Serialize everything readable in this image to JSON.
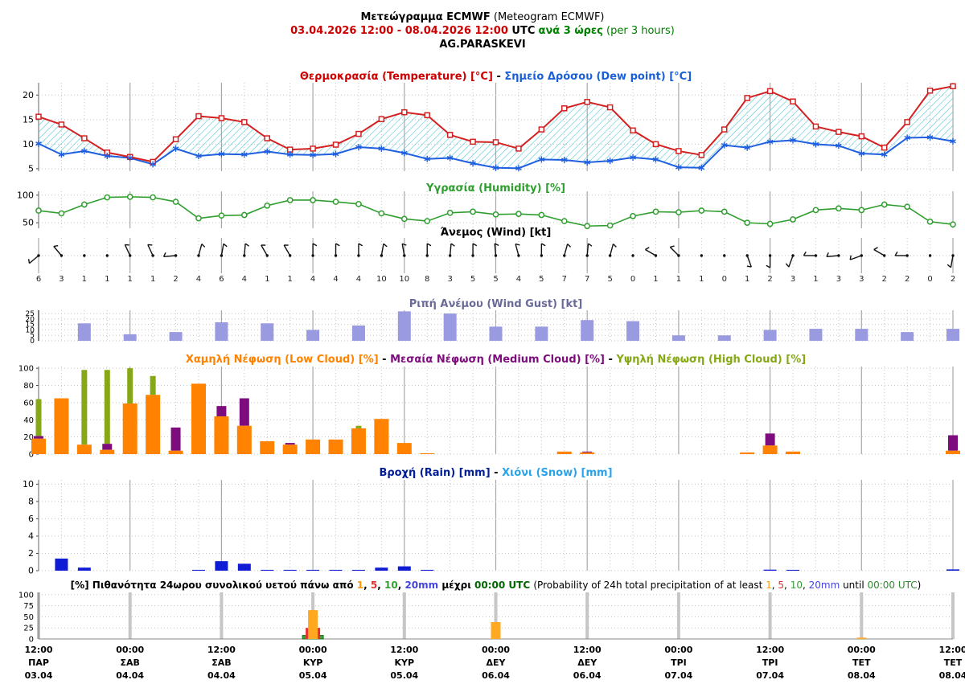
{
  "header": {
    "title_bold": "Μετεώγραμμα ECMWF",
    "title_paren": " (Meteogram ECMWF)",
    "date_range": "03.04.2026 12:00 - 08.04.2026 12:00",
    "utc_label": "UTC",
    "interval_greek": "ανά 3 ώρες",
    "interval_paren": "(per 3 hours)",
    "station": "AG.PARASKEVI"
  },
  "colors": {
    "date_red": "#cc0000",
    "interval_green": "#008000",
    "temperature": "#d42020",
    "dew_point": "#1f5fe0",
    "temp_fill_hatch": "#45c3d6",
    "humidity": "#2f9e2f",
    "wind_barb": "#111111",
    "gust_bar": "#9a9ae0",
    "low_cloud": "#ff8200",
    "medium_cloud": "#7d0c7d",
    "high_cloud": "#86a817",
    "rain_bar": "#0f1bd4",
    "prob_1mm": "#ffa820",
    "prob_5mm": "#e83030",
    "prob_10mm": "#3aa53a",
    "prob_20mm": "#3a3ae8",
    "grid_dotted": "#c4c4c4",
    "grid_solid": "#a8a8a8",
    "spine": "#888888"
  },
  "titles": {
    "temp": [
      {
        "t": "Θερμοκρασία (Temperature) [°C]",
        "c": "#cc0000"
      },
      {
        "t": " - ",
        "c": "#000000"
      },
      {
        "t": "Σημείο Δρόσου (Dew point) [°C]",
        "c": "#1a5fd6"
      }
    ],
    "humidity": [
      {
        "t": "Υγρασία (Humidity) [%]",
        "c": "#2f9e2f"
      }
    ],
    "wind": [
      {
        "t": "Άνεμος (Wind) [kt]",
        "c": "#000000"
      }
    ],
    "gust": [
      {
        "t": "Ριπή Ανέμου (Wind Gust) [kt]",
        "c": "#6a6a99"
      }
    ],
    "cloud": [
      {
        "t": "Χαμηλή Νέφωση (Low Cloud) [%]",
        "c": "#ff8200"
      },
      {
        "t": " - ",
        "c": "#000000"
      },
      {
        "t": "Μεσαία Νέφωση (Medium Cloud) [%]",
        "c": "#7d0c7d"
      },
      {
        "t": " - ",
        "c": "#000000"
      },
      {
        "t": "Υψηλή Νέφωση (High Cloud) [%]",
        "c": "#86a817"
      }
    ],
    "rain": [
      {
        "t": "Βροχή (Rain) [mm]",
        "c": "#001e96"
      },
      {
        "t": " - ",
        "c": "#000000"
      },
      {
        "t": "Χιόνι (Snow) [mm]",
        "c": "#2aa3e8"
      }
    ],
    "prob": [
      {
        "t": "[%] Πιθανότητα 24ωρου συνολικού υετού πάνω από ",
        "c": "#000000"
      },
      {
        "t": "1",
        "c": "#ff9900"
      },
      {
        "t": ", ",
        "c": "#000000"
      },
      {
        "t": "5",
        "c": "#e03030"
      },
      {
        "t": ", ",
        "c": "#000000"
      },
      {
        "t": "10",
        "c": "#33a033"
      },
      {
        "t": ", ",
        "c": "#000000"
      },
      {
        "t": "20mm",
        "c": "#4444dd"
      },
      {
        "t": " μέχρι ",
        "c": "#000000"
      },
      {
        "t": "00:00 UTC",
        "c": "#006600"
      },
      {
        "t": " ",
        "c": "#000000"
      },
      {
        "t": "(Probability of 24h total precipitation of at least ",
        "c": "#000000",
        "b": false
      },
      {
        "t": "1",
        "c": "#ff9900",
        "b": false
      },
      {
        "t": ", ",
        "c": "#000000",
        "b": false
      },
      {
        "t": "5",
        "c": "#e03030",
        "b": false
      },
      {
        "t": ", ",
        "c": "#000000",
        "b": false
      },
      {
        "t": "10",
        "c": "#33a033",
        "b": false
      },
      {
        "t": ", ",
        "c": "#000000",
        "b": false
      },
      {
        "t": "20mm",
        "c": "#4444dd",
        "b": false
      },
      {
        "t": " until ",
        "c": "#000000",
        "b": false
      },
      {
        "t": "00:00 UTC",
        "c": "#2e8b2e",
        "b": false
      },
      {
        "t": ")",
        "c": "#000000",
        "b": false
      }
    ]
  },
  "chart_data": [
    {
      "type": "line",
      "name": "temperature_dewpoint",
      "title": "Θερμοκρασία (Temperature) [°C] - Σημείο Δρόσου (Dew point) [°C]",
      "ylim": [
        4.5,
        22.5
      ],
      "yticks": [
        5,
        10,
        15,
        20
      ],
      "n_points": 41,
      "interval_hours": 3,
      "fill_between": "hatched",
      "series": [
        {
          "name": "temperature_C",
          "values": [
            15.6,
            14.0,
            11.2,
            8.3,
            7.4,
            6.4,
            11.0,
            15.7,
            15.3,
            14.5,
            11.2,
            8.9,
            9.1,
            9.9,
            12.1,
            15.1,
            16.5,
            15.9,
            11.9,
            10.5,
            10.4,
            9.1,
            13.0,
            17.3,
            18.6,
            17.5,
            12.8,
            10.0,
            8.6,
            7.8,
            13.0,
            19.4,
            20.8,
            18.7,
            13.6,
            12.5,
            11.6,
            9.3,
            14.5,
            20.9,
            21.8
          ]
        },
        {
          "name": "dew_point_C",
          "values": [
            10.1,
            7.9,
            8.6,
            7.6,
            7.2,
            5.9,
            9.1,
            7.6,
            8.0,
            7.9,
            8.5,
            7.9,
            7.8,
            8.0,
            9.4,
            9.1,
            8.2,
            7.0,
            7.2,
            6.1,
            5.2,
            5.1,
            6.9,
            6.8,
            6.3,
            6.6,
            7.3,
            6.9,
            5.3,
            5.2,
            9.8,
            9.3,
            10.5,
            10.8,
            10.0,
            9.7,
            8.1,
            7.9,
            11.3,
            11.4,
            10.6
          ]
        }
      ]
    },
    {
      "type": "line",
      "name": "humidity",
      "title": "Υγρασία (Humidity) [%]",
      "ylim": [
        40,
        107
      ],
      "yticks": [
        50,
        100
      ],
      "n_points": 41,
      "series": [
        {
          "name": "relative_humidity_pct",
          "values": [
            72,
            67,
            83,
            96,
            97,
            96,
            88,
            58,
            63,
            64,
            81,
            91,
            91,
            88,
            84,
            67,
            57,
            53,
            68,
            70,
            65,
            66,
            64,
            53,
            44,
            45,
            62,
            70,
            69,
            72,
            70,
            50,
            48,
            56,
            73,
            76,
            73,
            83,
            79,
            52,
            47
          ]
        }
      ]
    },
    {
      "type": "wind_barbs",
      "name": "wind",
      "title": "Άνεμος (Wind) [kt]",
      "n_points": 41,
      "speeds_kt": [
        6,
        3,
        1,
        1,
        1,
        1,
        2,
        4,
        6,
        4,
        1,
        1,
        4,
        4,
        4,
        10,
        10,
        8,
        3,
        5,
        5,
        4,
        5,
        7,
        7,
        5,
        0,
        1,
        1,
        1,
        0,
        1,
        2,
        3,
        1,
        3,
        3,
        2,
        2,
        0,
        2
      ],
      "dirs_deg": [
        230,
        320,
        null,
        null,
        335,
        335,
        265,
        15,
        10,
        5,
        330,
        330,
        0,
        0,
        0,
        10,
        350,
        0,
        5,
        0,
        355,
        345,
        0,
        15,
        5,
        15,
        null,
        300,
        315,
        null,
        null,
        160,
        180,
        200,
        270,
        265,
        250,
        300,
        270,
        null,
        190
      ]
    },
    {
      "type": "bar",
      "name": "wind_gust",
      "title": "Ριπή Ανέμου (Wind Gust) [kt]",
      "ylim": [
        0,
        28
      ],
      "yticks": [
        0,
        5,
        10,
        15,
        20,
        25
      ],
      "x_indices": [
        2,
        4,
        6,
        8,
        10,
        12,
        14,
        16,
        18,
        20,
        22,
        24,
        26,
        28,
        30,
        32,
        34,
        36,
        38,
        40
      ],
      "values": [
        16,
        6,
        8,
        17,
        16,
        10,
        14,
        27,
        25,
        13,
        13,
        19,
        18,
        5,
        5,
        10,
        11,
        11,
        8,
        11
      ]
    },
    {
      "type": "bar",
      "name": "cloud_cover",
      "title": "Χαμηλή Νέφωση (Low Cloud) [%] - Μεσαία Νέφωση (Medium Cloud) [%] - Υψηλή Νέφωση (High Cloud) [%]",
      "ylim": [
        0,
        102
      ],
      "yticks": [
        0,
        20,
        40,
        60,
        80,
        100
      ],
      "n_points": 41,
      "series": [
        {
          "name": "low_cloud_pct",
          "values": [
            18,
            65,
            11,
            5,
            59,
            69,
            4,
            82,
            44,
            33,
            15,
            11,
            17,
            17,
            30,
            41,
            13,
            1,
            0,
            0,
            0,
            0,
            0,
            3,
            2,
            0,
            0,
            0,
            0,
            0,
            0,
            2,
            10,
            3,
            0,
            0,
            0,
            0,
            0,
            0,
            4
          ]
        },
        {
          "name": "medium_cloud_top_pct",
          "values": [
            21,
            0,
            0,
            12,
            0,
            0,
            31,
            0,
            56,
            65,
            0,
            13,
            0,
            0,
            0,
            0,
            0,
            0,
            0,
            0,
            0,
            0,
            0,
            0,
            3,
            0,
            0,
            0,
            0,
            0,
            0,
            0,
            24,
            0,
            0,
            0,
            0,
            0,
            0,
            0,
            22
          ]
        },
        {
          "name": "high_cloud_top_pct",
          "values": [
            64,
            0,
            98,
            98,
            100,
            91,
            0,
            0,
            0,
            0,
            0,
            0,
            0,
            0,
            33,
            0,
            0,
            0,
            0,
            0,
            0,
            0,
            0,
            0,
            0,
            0,
            0,
            0,
            0,
            0,
            0,
            0,
            0,
            0,
            0,
            0,
            0,
            0,
            0,
            0,
            0
          ]
        }
      ]
    },
    {
      "type": "bar",
      "name": "precipitation",
      "title": "Βροχή (Rain) [mm] - Χιόνι (Snow) [mm]",
      "ylim": [
        0,
        10.5
      ],
      "yticks": [
        0,
        2,
        4,
        6,
        8,
        10
      ],
      "n_points": 41,
      "series": [
        {
          "name": "rain_mm",
          "values": [
            0,
            1.4,
            0.35,
            0,
            0,
            0,
            0,
            0.1,
            1.1,
            0.8,
            0.1,
            0.1,
            0.1,
            0.1,
            0.1,
            0.35,
            0.5,
            0.1,
            0,
            0,
            0,
            0,
            0,
            0,
            0,
            0,
            0,
            0,
            0,
            0,
            0,
            0,
            0.12,
            0.1,
            0,
            0,
            0,
            0,
            0,
            0,
            0.15
          ]
        },
        {
          "name": "snow_mm",
          "values": [
            0,
            0,
            0,
            0,
            0,
            0,
            0,
            0,
            0,
            0,
            0,
            0,
            0,
            0,
            0,
            0,
            0,
            0,
            0,
            0,
            0,
            0,
            0,
            0,
            0,
            0,
            0,
            0,
            0,
            0,
            0,
            0,
            0,
            0,
            0,
            0,
            0,
            0,
            0,
            0,
            0
          ]
        }
      ]
    },
    {
      "type": "bar",
      "name": "precip_probability_24h",
      "title": "[%] Πιθανότητα 24ωρου συνολικού υετού πάνω από 1, 5, 10, 20mm μέχρι 00:00 UTC",
      "ylim": [
        0,
        105
      ],
      "yticks": [
        0,
        25,
        50,
        75,
        100
      ],
      "bars": [
        {
          "x_index": 12,
          "at": "00:00 05.04",
          "p_1mm": 65,
          "p_5mm": 25,
          "p_10mm": 8,
          "p_20mm": 0
        },
        {
          "x_index": 20,
          "at": "00:00 06.04",
          "p_1mm": 38,
          "p_5mm": 0,
          "p_10mm": 0,
          "p_20mm": 0
        },
        {
          "x_index": 36,
          "at": "00:00 08.04",
          "p_1mm": 3,
          "p_5mm": 0,
          "p_10mm": 0,
          "p_20mm": 0
        }
      ]
    }
  ],
  "time_axis": {
    "n_points": 41,
    "step_hours": 3,
    "labels": [
      {
        "time": "12:00",
        "day": "ΠΑΡ",
        "date": "03.04"
      },
      {
        "time": "00:00",
        "day": "ΣΑΒ",
        "date": "04.04"
      },
      {
        "time": "12:00",
        "day": "ΣΑΒ",
        "date": "04.04"
      },
      {
        "time": "00:00",
        "day": "ΚΥΡ",
        "date": "05.04"
      },
      {
        "time": "12:00",
        "day": "ΚΥΡ",
        "date": "05.04"
      },
      {
        "time": "00:00",
        "day": "ΔΕΥ",
        "date": "06.04"
      },
      {
        "time": "12:00",
        "day": "ΔΕΥ",
        "date": "06.04"
      },
      {
        "time": "00:00",
        "day": "ΤΡΙ",
        "date": "07.04"
      },
      {
        "time": "12:00",
        "day": "ΤΡΙ",
        "date": "07.04"
      },
      {
        "time": "00:00",
        "day": "ΤΕΤ",
        "date": "08.04"
      },
      {
        "time": "12:00",
        "day": "ΤΕΤ",
        "date": "08.04"
      }
    ]
  }
}
